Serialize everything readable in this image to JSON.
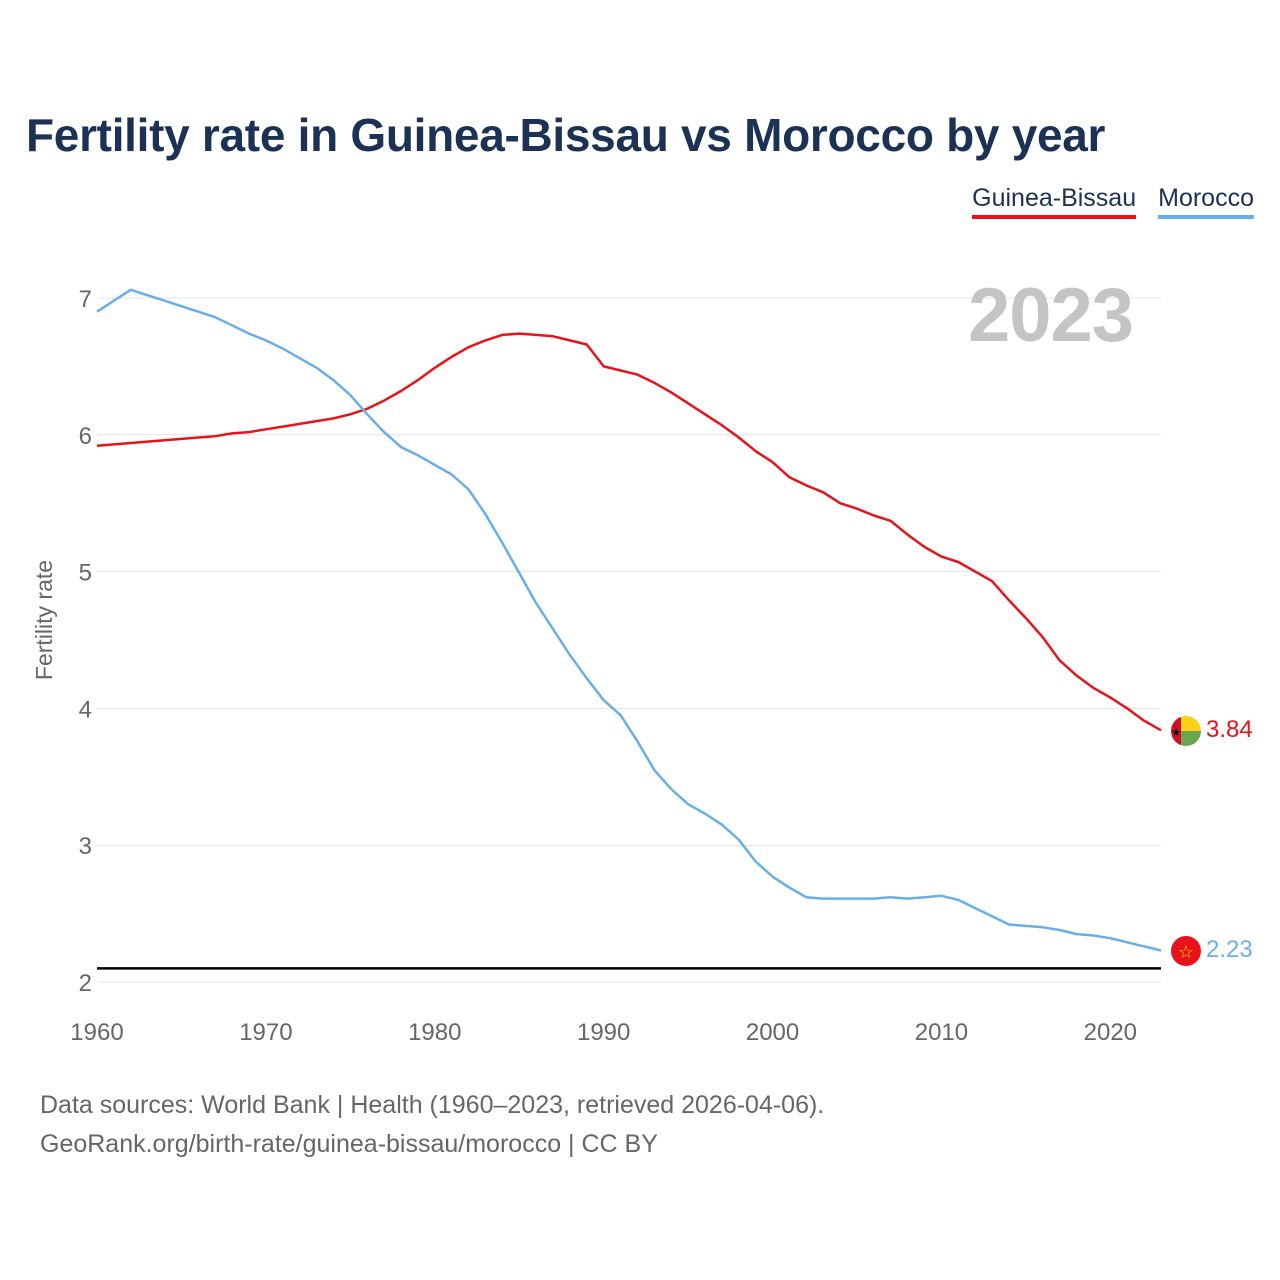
{
  "title": "Fertility rate in Guinea-Bissau vs Morocco by year",
  "year_label": "2023",
  "legend": {
    "guinea_bissau": "Guinea-Bissau",
    "morocco": "Morocco"
  },
  "colors": {
    "guinea_bissau": "#e8131a",
    "morocco": "#6aaee8",
    "title": "#1b3254",
    "replacement_line": "#000000"
  },
  "end_labels": {
    "guinea_bissau": "3.84",
    "morocco": "2.23"
  },
  "footer": {
    "line1": "Data sources: World Bank | Health (1960–2023, retrieved 2026-04-06).",
    "line2": "GeoRank.org/birth-rate/guinea-bissau/morocco | CC BY"
  },
  "chart_data": {
    "type": "line",
    "title": "Fertility rate in Guinea-Bissau vs Morocco by year",
    "xlabel": "",
    "ylabel": "Fertility rate",
    "xlim": [
      1960,
      2023
    ],
    "ylim": [
      2,
      7
    ],
    "x_ticks": [
      1960,
      1970,
      1980,
      1990,
      2000,
      2010,
      2020
    ],
    "y_ticks": [
      2,
      3,
      4,
      5,
      6,
      7
    ],
    "reference_line": 2.1,
    "x": [
      1960,
      1961,
      1962,
      1963,
      1964,
      1965,
      1966,
      1967,
      1968,
      1969,
      1970,
      1971,
      1972,
      1973,
      1974,
      1975,
      1976,
      1977,
      1978,
      1979,
      1980,
      1981,
      1982,
      1983,
      1984,
      1985,
      1986,
      1987,
      1988,
      1989,
      1990,
      1991,
      1992,
      1993,
      1994,
      1995,
      1996,
      1997,
      1998,
      1999,
      2000,
      2001,
      2002,
      2003,
      2004,
      2005,
      2006,
      2007,
      2008,
      2009,
      2010,
      2011,
      2012,
      2013,
      2014,
      2015,
      2016,
      2017,
      2018,
      2019,
      2020,
      2021,
      2022,
      2023
    ],
    "series": [
      {
        "name": "Guinea-Bissau",
        "values": [
          5.92,
          5.93,
          5.94,
          5.95,
          5.96,
          5.97,
          5.98,
          5.99,
          6.01,
          6.02,
          6.04,
          6.06,
          6.08,
          6.1,
          6.12,
          6.15,
          6.19,
          6.25,
          6.32,
          6.4,
          6.49,
          6.57,
          6.64,
          6.69,
          6.73,
          6.74,
          6.73,
          6.72,
          6.69,
          6.66,
          6.5,
          6.47,
          6.44,
          6.38,
          6.31,
          6.23,
          6.15,
          6.07,
          5.98,
          5.88,
          5.8,
          5.69,
          5.63,
          5.58,
          5.5,
          5.46,
          5.41,
          5.37,
          5.27,
          5.18,
          5.11,
          5.07,
          5.0,
          4.93,
          4.79,
          4.66,
          4.52,
          4.35,
          4.24,
          4.15,
          4.08,
          4.0,
          3.91,
          3.84
        ]
      },
      {
        "name": "Morocco",
        "values": [
          6.9,
          6.98,
          7.06,
          7.02,
          6.98,
          6.94,
          6.9,
          6.86,
          6.8,
          6.74,
          6.69,
          6.63,
          6.56,
          6.49,
          6.4,
          6.29,
          6.15,
          6.02,
          5.91,
          5.85,
          5.78,
          5.71,
          5.6,
          5.42,
          5.21,
          4.99,
          4.77,
          4.58,
          4.39,
          4.22,
          4.06,
          3.95,
          3.76,
          3.55,
          3.41,
          3.3,
          3.23,
          3.15,
          3.04,
          2.88,
          2.77,
          2.69,
          2.62,
          2.61,
          2.61,
          2.61,
          2.61,
          2.62,
          2.61,
          2.62,
          2.63,
          2.6,
          2.54,
          2.48,
          2.42,
          2.41,
          2.4,
          2.38,
          2.35,
          2.34,
          2.32,
          2.29,
          2.26,
          2.23
        ]
      }
    ]
  }
}
